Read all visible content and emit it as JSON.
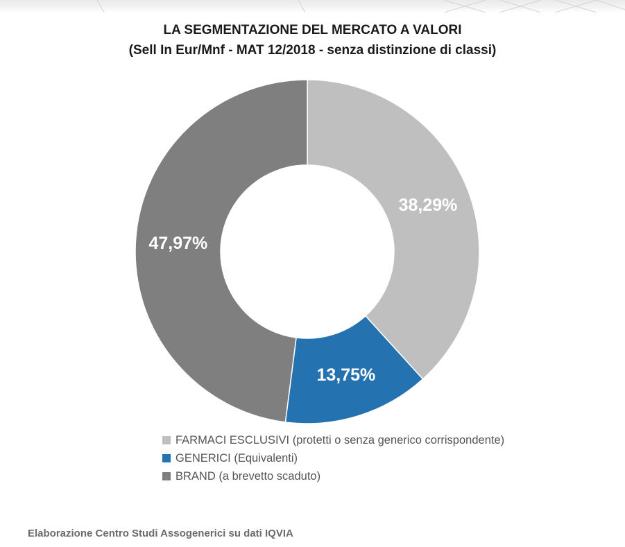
{
  "header": {
    "title_line1": "LA SEGMENTAZIONE DEL MERCATO A VALORI",
    "title_line2": "(Sell In Eur/Mnf - MAT  12/2018 - senza distinzione di classi)"
  },
  "chart_data": {
    "type": "pie",
    "donut": true,
    "title": "LA SEGMENTAZIONE DEL MERCATO A VALORI",
    "subtitle": "(Sell In Eur/Mnf - MAT  12/2018 - senza distinzione di classi)",
    "legend_position": "bottom",
    "series": [
      {
        "name": "FARMACI ESCLUSIVI (protetti o senza generico corrispondente)",
        "value": 38.29,
        "label": "38,29%",
        "color": "#bfbfbf"
      },
      {
        "name": "GENERICI (Equivalenti)",
        "value": 13.75,
        "label": "13,75%",
        "color": "#2472b0"
      },
      {
        "name": "BRAND (a brevetto scaduto)",
        "value": 47.97,
        "label": "47,97%",
        "color": "#7f7f7f"
      }
    ]
  },
  "footer": {
    "source": "Elaborazione Centro Studi Assogenerici su dati IQVIA"
  }
}
